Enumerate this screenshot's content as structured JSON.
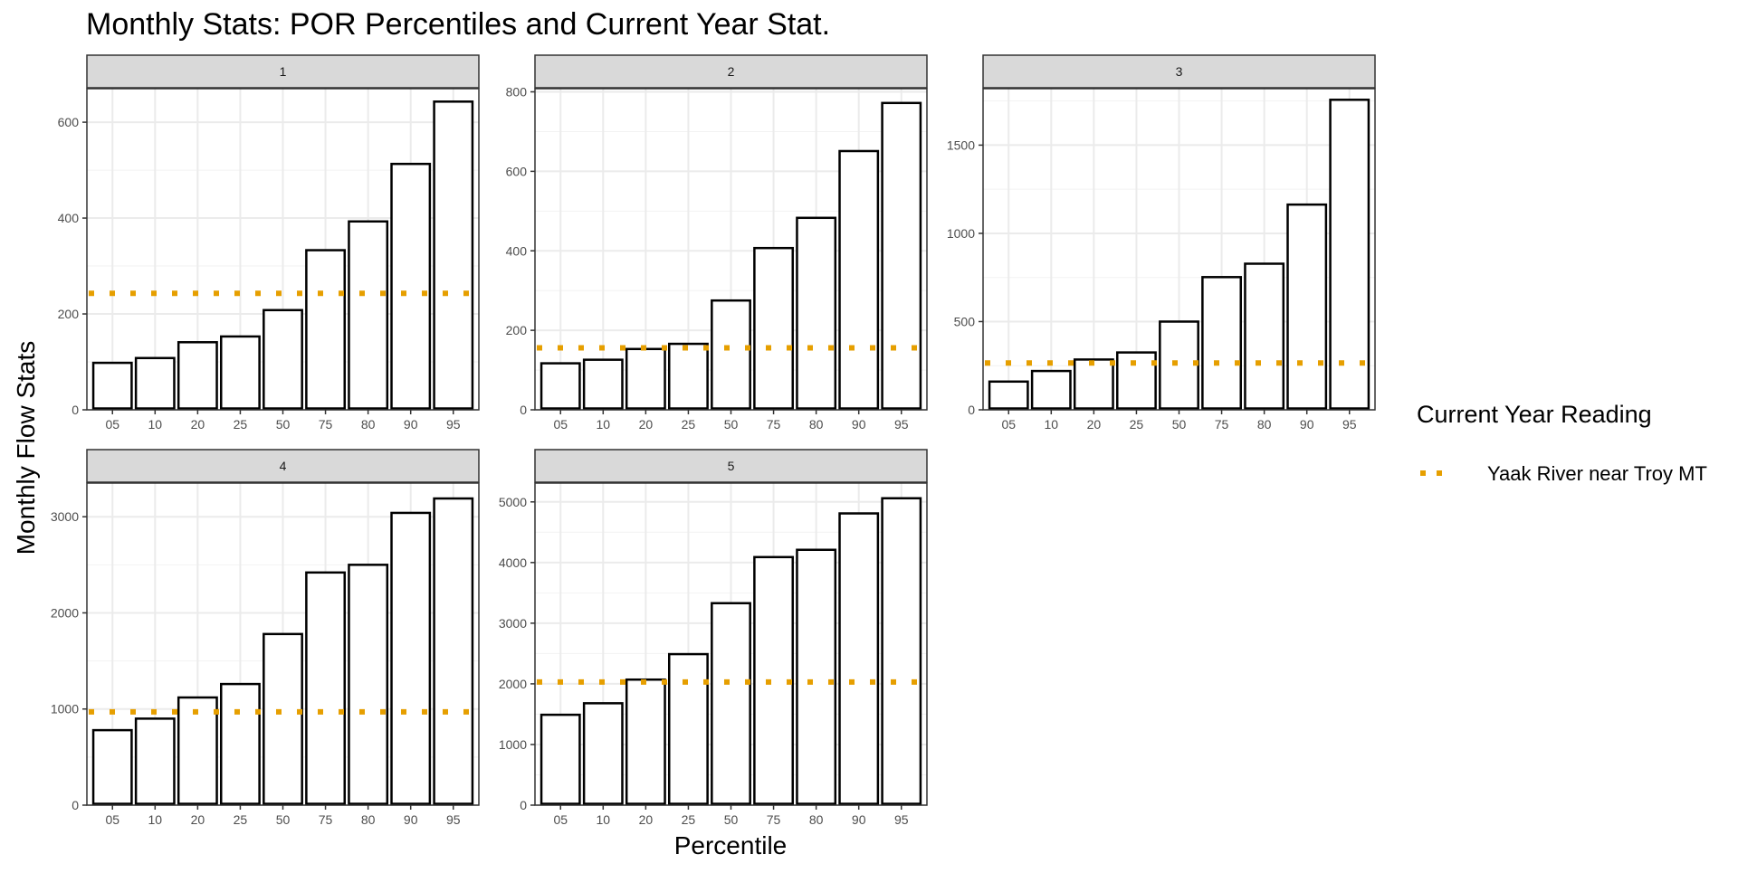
{
  "chart_data": {
    "type": "bar",
    "title": "Monthly Stats: POR Percentiles and Current Year Stat.",
    "xlabel": "Percentile",
    "ylabel": "Monthly Flow Stats",
    "categories": [
      "05",
      "10",
      "20",
      "25",
      "50",
      "75",
      "80",
      "90",
      "95"
    ],
    "grid": true,
    "legend": {
      "title": "Current Year Reading",
      "position": "right",
      "entries": [
        {
          "label": "Yaak River near Troy MT",
          "color": "#E69F00",
          "style": "dotted"
        }
      ]
    },
    "colors": {
      "bar_fill": "#FFFFFF",
      "bar_stroke": "#000000",
      "reference_line": "#E69F00",
      "strip_fill": "#D9D9D9"
    },
    "panels": [
      {
        "label": "1",
        "values": [
          98,
          108,
          141,
          153,
          208,
          333,
          393,
          513,
          643
        ],
        "current": 243,
        "ylim": [
          0,
          670
        ],
        "yticks": [
          0,
          200,
          400,
          600
        ]
      },
      {
        "label": "2",
        "values": [
          117,
          126,
          153,
          166,
          275,
          407,
          483,
          651,
          772
        ],
        "current": 156,
        "ylim": [
          0,
          808
        ],
        "yticks": [
          0,
          200,
          400,
          600,
          800
        ]
      },
      {
        "label": "3",
        "values": [
          160,
          220,
          285,
          325,
          500,
          752,
          828,
          1163,
          1757
        ],
        "current": 265,
        "ylim": [
          0,
          1820
        ],
        "yticks": [
          0,
          500,
          1000,
          1500
        ]
      },
      {
        "label": "4",
        "values": [
          780,
          900,
          1120,
          1260,
          1780,
          2420,
          2500,
          3040,
          3190
        ],
        "current": 970,
        "ylim": [
          0,
          3350
        ],
        "yticks": [
          0,
          1000,
          2000,
          3000
        ]
      },
      {
        "label": "5",
        "values": [
          1490,
          1680,
          2070,
          2490,
          3330,
          4090,
          4210,
          4810,
          5060
        ],
        "current": 2030,
        "ylim": [
          0,
          5310
        ],
        "yticks": [
          0,
          1000,
          2000,
          3000,
          4000,
          5000
        ]
      }
    ]
  }
}
